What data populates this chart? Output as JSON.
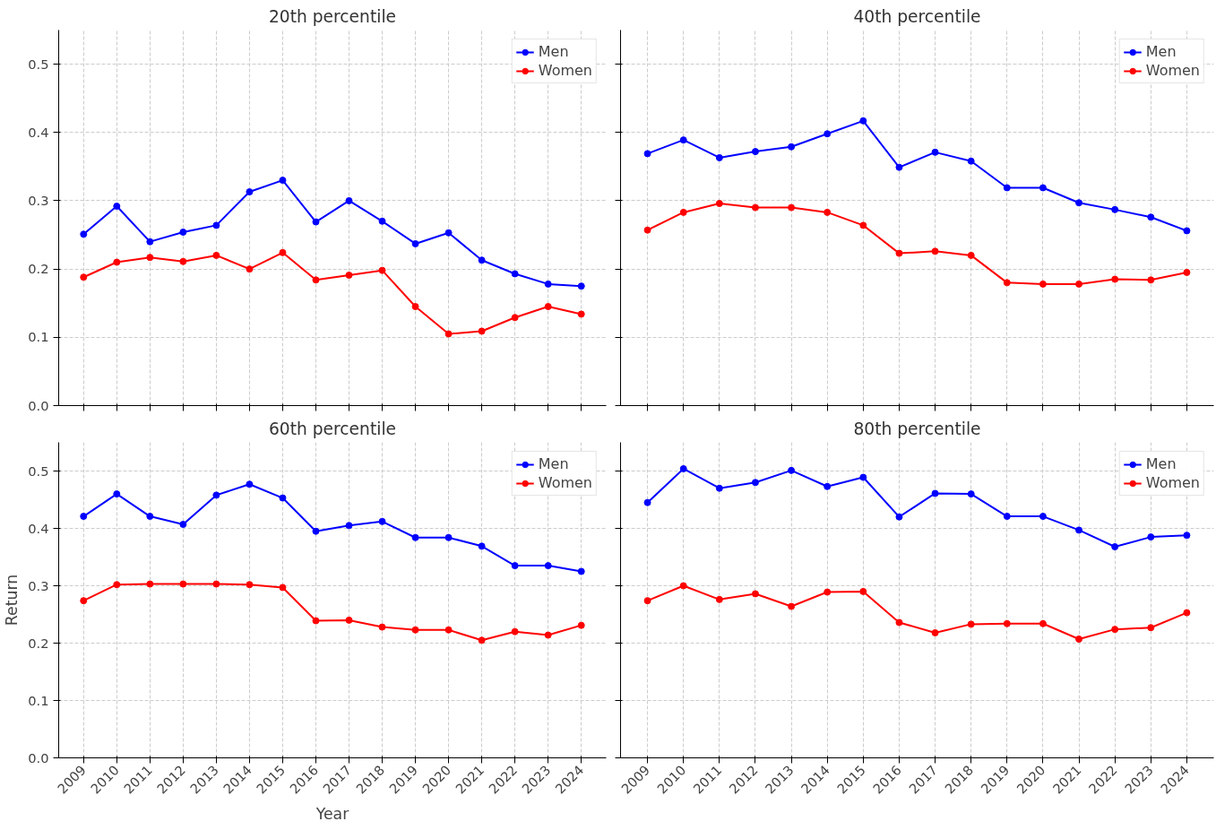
{
  "chart_data": [
    {
      "type": "line",
      "title": "20th percentile",
      "x": [
        2009,
        2010,
        2011,
        2012,
        2013,
        2014,
        2015,
        2016,
        2017,
        2018,
        2019,
        2020,
        2021,
        2022,
        2023,
        2024
      ],
      "xlim": [
        2008.25,
        2024.75
      ],
      "xticks": [
        2009,
        2010,
        2011,
        2012,
        2013,
        2014,
        2015,
        2016,
        2017,
        2018,
        2019,
        2020,
        2021,
        2022,
        2023,
        2024
      ],
      "ylim": [
        0,
        0.55
      ],
      "yticks": [
        {
          "value": 0,
          "label": "0.0"
        },
        0.1,
        0.2,
        0.3,
        0.4,
        0.5
      ],
      "grid": true,
      "legend": "top right",
      "marker": "circle",
      "tick_labels": "y",
      "series": [
        {
          "name": "Men",
          "color": "#0000ff",
          "values": [
            0.251,
            0.292,
            0.24,
            0.254,
            0.264,
            0.313,
            0.33,
            0.269,
            0.3,
            0.27,
            0.237,
            0.253,
            0.213,
            0.193,
            0.178,
            0.175
          ]
        },
        {
          "name": "Women",
          "color": "#ff0000",
          "values": [
            0.188,
            0.21,
            0.217,
            0.211,
            0.22,
            0.2,
            0.224,
            0.184,
            0.191,
            0.198,
            0.145,
            0.105,
            0.109,
            0.129,
            0.145,
            0.134
          ]
        }
      ]
    },
    {
      "type": "line",
      "title": "40th percentile",
      "x": [
        2009,
        2010,
        2011,
        2012,
        2013,
        2014,
        2015,
        2016,
        2017,
        2018,
        2019,
        2020,
        2021,
        2022,
        2023,
        2024
      ],
      "xlim": [
        2008.25,
        2024.75
      ],
      "xticks": [
        2009,
        2010,
        2011,
        2012,
        2013,
        2014,
        2015,
        2016,
        2017,
        2018,
        2019,
        2020,
        2021,
        2022,
        2023,
        2024
      ],
      "ylim": [
        0,
        0.55
      ],
      "yticks": [
        0,
        0.1,
        0.2,
        0.3,
        0.4,
        0.5
      ],
      "grid": true,
      "legend": "top right",
      "marker": "circle",
      "tick_labels": false,
      "series": [
        {
          "name": "Men",
          "color": "#0000ff",
          "values": [
            0.369,
            0.389,
            0.363,
            0.372,
            0.379,
            0.398,
            0.417,
            0.349,
            0.371,
            0.358,
            0.319,
            0.319,
            0.297,
            0.287,
            0.276,
            0.256
          ]
        },
        {
          "name": "Women",
          "color": "#ff0000",
          "values": [
            0.257,
            0.283,
            0.296,
            0.29,
            0.29,
            0.283,
            0.264,
            0.223,
            0.226,
            0.22,
            0.18,
            0.178,
            0.178,
            0.185,
            0.184,
            0.195
          ]
        }
      ]
    },
    {
      "type": "line",
      "title": "60th percentile",
      "xlabel": "Year",
      "ylabel": "Return",
      "x": [
        2009,
        2010,
        2011,
        2012,
        2013,
        2014,
        2015,
        2016,
        2017,
        2018,
        2019,
        2020,
        2021,
        2022,
        2023,
        2024
      ],
      "xlim": [
        2008.25,
        2024.75
      ],
      "xticks": [
        2009,
        2010,
        2011,
        2012,
        2013,
        2014,
        2015,
        2016,
        2017,
        2018,
        2019,
        2020,
        2021,
        2022,
        2023,
        2024
      ],
      "ylim": [
        0,
        0.55
      ],
      "yticks": [
        {
          "value": 0,
          "label": "0.0"
        },
        0.1,
        0.2,
        0.3,
        0.4,
        0.5
      ],
      "grid": true,
      "legend": "top right",
      "marker": "circle",
      "series": [
        {
          "name": "Men",
          "color": "#0000ff",
          "values": [
            0.421,
            0.46,
            0.421,
            0.407,
            0.458,
            0.477,
            0.453,
            0.395,
            0.405,
            0.412,
            0.384,
            0.384,
            0.369,
            0.335,
            0.335,
            0.325
          ]
        },
        {
          "name": "Women",
          "color": "#ff0000",
          "values": [
            0.274,
            0.302,
            0.303,
            0.303,
            0.303,
            0.302,
            0.297,
            0.239,
            0.24,
            0.228,
            0.223,
            0.223,
            0.205,
            0.22,
            0.214,
            0.231
          ]
        }
      ]
    },
    {
      "type": "line",
      "title": "80th percentile",
      "x": [
        2009,
        2010,
        2011,
        2012,
        2013,
        2014,
        2015,
        2016,
        2017,
        2018,
        2019,
        2020,
        2021,
        2022,
        2023,
        2024
      ],
      "xlim": [
        2008.25,
        2024.75
      ],
      "xticks": [
        2009,
        2010,
        2011,
        2012,
        2013,
        2014,
        2015,
        2016,
        2017,
        2018,
        2019,
        2020,
        2021,
        2022,
        2023,
        2024
      ],
      "ylim": [
        0,
        0.55
      ],
      "yticks": [
        0,
        0.1,
        0.2,
        0.3,
        0.4,
        0.5
      ],
      "grid": true,
      "legend": "top right",
      "marker": "circle",
      "tick_labels": "x",
      "series": [
        {
          "name": "Men",
          "color": "#0000ff",
          "values": [
            0.445,
            0.504,
            0.47,
            0.48,
            0.501,
            0.473,
            0.489,
            0.42,
            0.461,
            0.46,
            0.421,
            0.421,
            0.397,
            0.368,
            0.385,
            0.388
          ]
        },
        {
          "name": "Women",
          "color": "#ff0000",
          "values": [
            0.274,
            0.3,
            0.276,
            0.286,
            0.264,
            0.289,
            0.29,
            0.236,
            0.218,
            0.233,
            0.234,
            0.234,
            0.207,
            0.224,
            0.227,
            0.253
          ]
        }
      ]
    }
  ]
}
